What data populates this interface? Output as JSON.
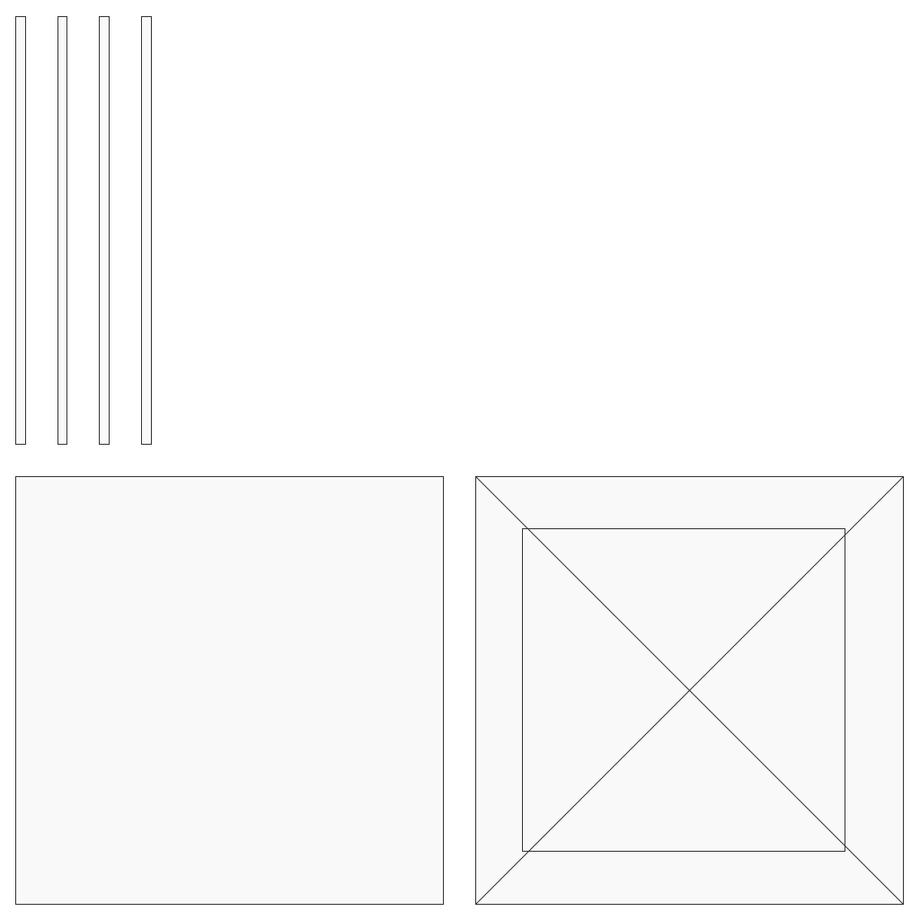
{
  "colors": {
    "background": "#ffffff",
    "panel_fill": "#f9f9f9",
    "outline": "#333333"
  },
  "elements": {
    "bars": 4,
    "square_panels": 2,
    "inner_square": 1,
    "diagonal_lines": 2
  }
}
